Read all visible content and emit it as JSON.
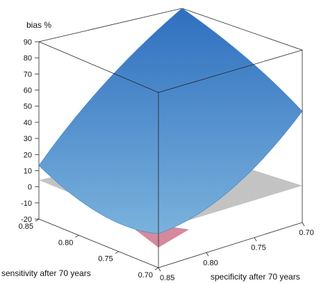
{
  "chart_data": {
    "type": "surface",
    "title": "",
    "zlabel": "bias %",
    "xlabel": "sensitivity after 70 years",
    "ylabel": "specificity after 70 years",
    "zlim": [
      -20,
      90
    ],
    "z_ticks": [
      "-20",
      "-10",
      "0",
      "10",
      "20",
      "30",
      "40",
      "50",
      "60",
      "70",
      "80",
      "90"
    ],
    "x_ticks": [
      "0.85",
      "0.80",
      "0.75",
      "0.70"
    ],
    "y_ticks": [
      "0.85",
      "0.80",
      "0.75",
      "0.70"
    ],
    "grid": false,
    "surface": {
      "sensitivity": [
        0.85,
        0.7
      ],
      "specificity": [
        0.85,
        0.7
      ],
      "corner_bias": [
        {
          "sensitivity": 0.85,
          "specificity": 0.85,
          "bias": -6
        },
        {
          "sensitivity": 0.7,
          "specificity": 0.85,
          "bias": 12
        },
        {
          "sensitivity": 0.85,
          "specificity": 0.7,
          "bias": 45
        },
        {
          "sensitivity": 0.7,
          "specificity": 0.7,
          "bias": 90
        }
      ]
    },
    "zero_plane": {
      "bias": 0
    },
    "colors": {
      "surface_top": "#2f6fbf",
      "surface_bottom": "#7ab2dc",
      "negative_region": "#d48a9c",
      "zero_plane": "#b9b9b9"
    }
  }
}
